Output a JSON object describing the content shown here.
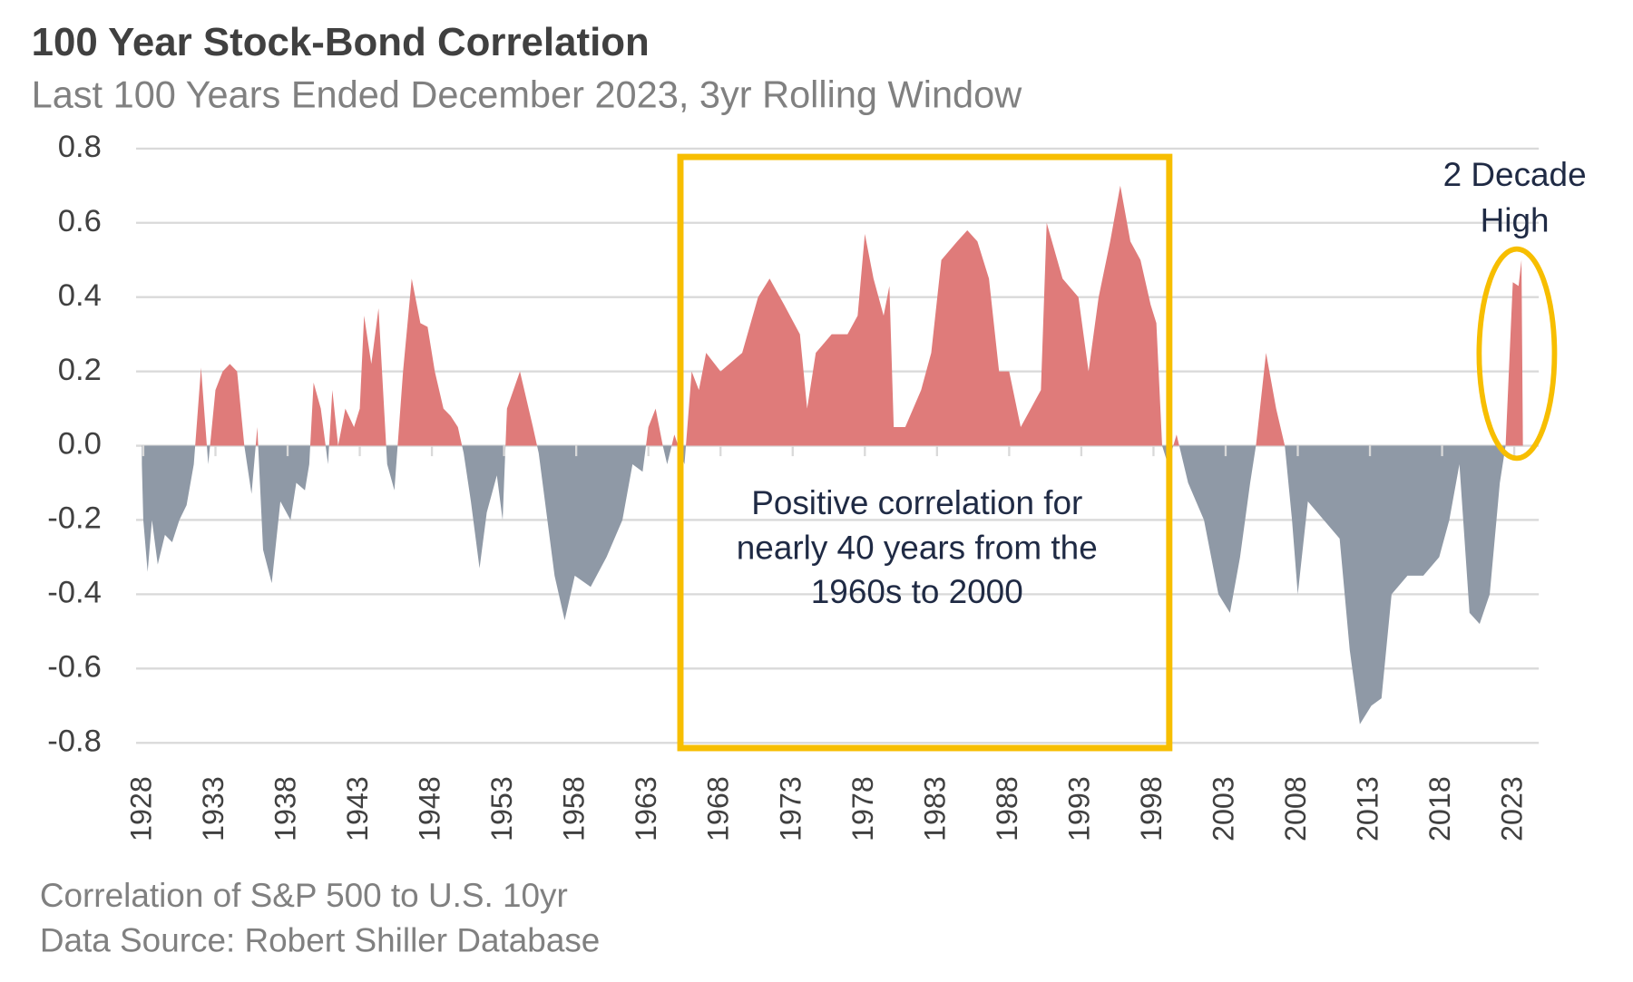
{
  "chart_data": {
    "type": "area",
    "title": "100 Year Stock-Bond Correlation",
    "subtitle": "Last 100 Years Ended December 2023, 3yr Rolling Window",
    "x": [
      1927.9,
      1928.0,
      1928.3,
      1928.6,
      1929.0,
      1929.5,
      1930.0,
      1930.5,
      1931.0,
      1931.5,
      1932.0,
      1932.5,
      1933.0,
      1933.5,
      1934.0,
      1934.5,
      1935.0,
      1935.5,
      1935.9,
      1936.3,
      1936.9,
      1937.5,
      1938.2,
      1938.6,
      1939.2,
      1939.5,
      1939.8,
      1940.3,
      1940.8,
      1941.1,
      1941.5,
      1942.0,
      1942.6,
      1943.0,
      1943.3,
      1943.8,
      1944.3,
      1944.9,
      1945.4,
      1946.0,
      1946.6,
      1947.2,
      1947.7,
      1948.2,
      1948.8,
      1949.3,
      1949.8,
      1950.2,
      1950.7,
      1951.3,
      1951.8,
      1952.5,
      1952.9,
      1953.2,
      1954.1,
      1955.0,
      1955.4,
      1956.0,
      1956.5,
      1957.2,
      1957.9,
      1959.0,
      1960.1,
      1961.2,
      1961.9,
      1962.6,
      1963.0,
      1963.5,
      1964.0,
      1964.3,
      1964.8,
      1965.5,
      1966.0,
      1966.5,
      1967.0,
      1968.0,
      1969.5,
      1970.6,
      1971.4,
      1972.4,
      1973.5,
      1974.0,
      1974.6,
      1975.7,
      1976.8,
      1977.5,
      1978.0,
      1978.6,
      1979.3,
      1979.7,
      1980.0,
      1980.8,
      1981.9,
      1982.6,
      1983.3,
      1984.4,
      1985.1,
      1985.8,
      1986.6,
      1987.3,
      1988.0,
      1988.8,
      1989.5,
      1990.2,
      1990.6,
      1991.7,
      1992.8,
      1993.5,
      1994.2,
      1995.0,
      1995.7,
      1996.4,
      1997.1,
      1997.8,
      1998.2,
      1998.6,
      1999.0,
      1999.6,
      2000.4,
      2001.5,
      2002.5,
      2003.3,
      2004.0,
      2004.7,
      2005.1,
      2005.8,
      2006.5,
      2007.1,
      2007.6,
      2008.0,
      2008.7,
      2009.8,
      2010.9,
      2011.6,
      2012.3,
      2013.1,
      2013.8,
      2014.5,
      2015.6,
      2016.7,
      2017.8,
      2018.5,
      2019.2,
      2019.9,
      2020.6,
      2021.3,
      2022.0,
      2022.4,
      2022.9,
      2023.3,
      2023.5,
      2023.6
    ],
    "values": [
      -0.05,
      -0.2,
      -0.34,
      -0.2,
      -0.32,
      -0.24,
      -0.26,
      -0.2,
      -0.16,
      -0.05,
      0.21,
      -0.05,
      0.15,
      0.2,
      0.22,
      0.2,
      0.0,
      -0.13,
      0.05,
      -0.28,
      -0.37,
      -0.15,
      -0.2,
      -0.1,
      -0.12,
      -0.05,
      0.17,
      0.1,
      -0.05,
      0.15,
      0.0,
      0.1,
      0.05,
      0.1,
      0.35,
      0.22,
      0.37,
      -0.05,
      -0.12,
      0.2,
      0.45,
      0.33,
      0.32,
      0.2,
      0.1,
      0.08,
      0.05,
      -0.02,
      -0.15,
      -0.33,
      -0.18,
      -0.08,
      -0.2,
      0.1,
      0.2,
      0.05,
      -0.02,
      -0.2,
      -0.35,
      -0.47,
      -0.35,
      -0.38,
      -0.3,
      -0.2,
      -0.05,
      -0.07,
      0.05,
      0.1,
      0.0,
      -0.05,
      0.03,
      -0.05,
      0.2,
      0.15,
      0.25,
      0.2,
      0.25,
      0.4,
      0.45,
      0.38,
      0.3,
      0.1,
      0.25,
      0.3,
      0.3,
      0.35,
      0.57,
      0.45,
      0.35,
      0.43,
      0.05,
      0.05,
      0.15,
      0.25,
      0.5,
      0.55,
      0.58,
      0.55,
      0.45,
      0.2,
      0.2,
      0.05,
      0.1,
      0.15,
      0.6,
      0.45,
      0.4,
      0.2,
      0.4,
      0.55,
      0.7,
      0.55,
      0.5,
      0.38,
      0.33,
      0.0,
      -0.05,
      0.03,
      -0.1,
      -0.2,
      -0.4,
      -0.45,
      -0.3,
      -0.1,
      0.0,
      0.25,
      0.1,
      0.0,
      -0.2,
      -0.4,
      -0.15,
      -0.2,
      -0.25,
      -0.55,
      -0.75,
      -0.7,
      -0.68,
      -0.4,
      -0.35,
      -0.35,
      -0.3,
      -0.2,
      -0.05,
      -0.45,
      -0.48,
      -0.4,
      -0.1,
      0.0,
      0.44,
      0.43,
      0.5,
      0.0
    ],
    "positive_color": "#df7b7a",
    "negative_color": "#8f99a6",
    "xlim": [
      1927.5,
      2024.7
    ],
    "xticks": [
      1928,
      1933,
      1938,
      1943,
      1948,
      1953,
      1958,
      1963,
      1968,
      1973,
      1978,
      1983,
      1988,
      1993,
      1998,
      2003,
      2008,
      2013,
      2018,
      2023
    ],
    "ylim": [
      -0.8,
      0.8
    ],
    "yticks": [
      {
        "value": -0.8,
        "label": "-0.8"
      },
      {
        "value": -0.6,
        "label": "-0.6"
      },
      {
        "value": -0.4,
        "label": "-0.4"
      },
      {
        "value": -0.2,
        "label": "-0.2"
      },
      {
        "value": 0,
        "label": "0.0"
      },
      0.2,
      0.4,
      0.6,
      0.8
    ],
    "grid": true,
    "box_annotation": [
      "Positive correlation for",
      "nearly 40 years from the",
      "1960s to 2000"
    ],
    "high_annotation": [
      "2 Decade",
      "High"
    ],
    "notes": [
      "Correlation of S&P 500 to U.S. 10yr",
      "Data Source: Robert Shiller Database"
    ]
  }
}
